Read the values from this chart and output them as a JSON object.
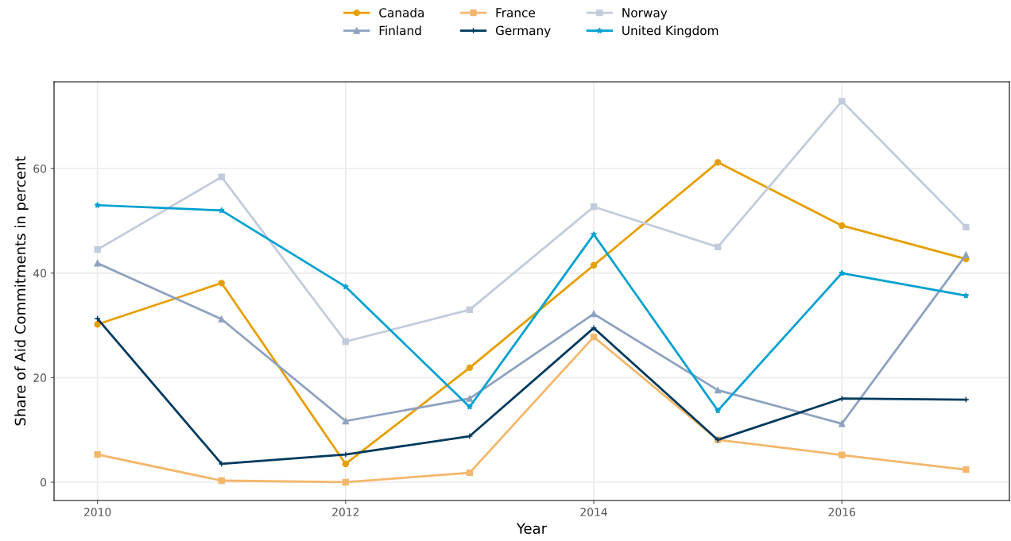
{
  "chart_data": {
    "type": "line",
    "xlabel": "Year",
    "ylabel": "Share of Aid Commitments in percent",
    "x": [
      2010,
      2011,
      2012,
      2013,
      2014,
      2015,
      2016,
      2017
    ],
    "series": [
      {
        "name": "Canada",
        "color": "#e69f00",
        "marker": "circle",
        "values": [
          30.2,
          38.1,
          3.5,
          21.9,
          41.5,
          61.2,
          49.1,
          42.7
        ]
      },
      {
        "name": "Finland",
        "color": "#8ea2bf",
        "marker": "triangle",
        "values": [
          41.9,
          31.2,
          11.7,
          16.0,
          32.2,
          17.6,
          11.2,
          43.5
        ]
      },
      {
        "name": "France",
        "color": "#f3b76b",
        "marker": "square",
        "values": [
          5.3,
          0.3,
          0.0,
          1.8,
          27.8,
          8.1,
          5.2,
          2.4
        ]
      },
      {
        "name": "Germany",
        "color": "#003a5d",
        "marker": "cross",
        "values": [
          31.3,
          3.5,
          5.3,
          8.8,
          29.5,
          8.1,
          16.0,
          15.8
        ]
      },
      {
        "name": "Norway",
        "color": "#c2cbdc",
        "marker": "square",
        "values": [
          44.5,
          58.4,
          26.9,
          33.0,
          52.7,
          45.0,
          72.9,
          48.8
        ]
      },
      {
        "name": "United Kingdom",
        "color": "#00a1d0",
        "marker": "star",
        "values": [
          53.0,
          52.0,
          37.4,
          14.4,
          47.4,
          13.7,
          40.0,
          35.7
        ]
      }
    ],
    "xlim": [
      2009.65,
      2017.35
    ],
    "xticks": [
      2010,
      2012,
      2014,
      2016
    ],
    "ylim": [
      -3.5,
      76.6
    ],
    "yticks": [
      0,
      20,
      40,
      60
    ],
    "grid": true,
    "legend": "top",
    "line_style": "solid"
  }
}
